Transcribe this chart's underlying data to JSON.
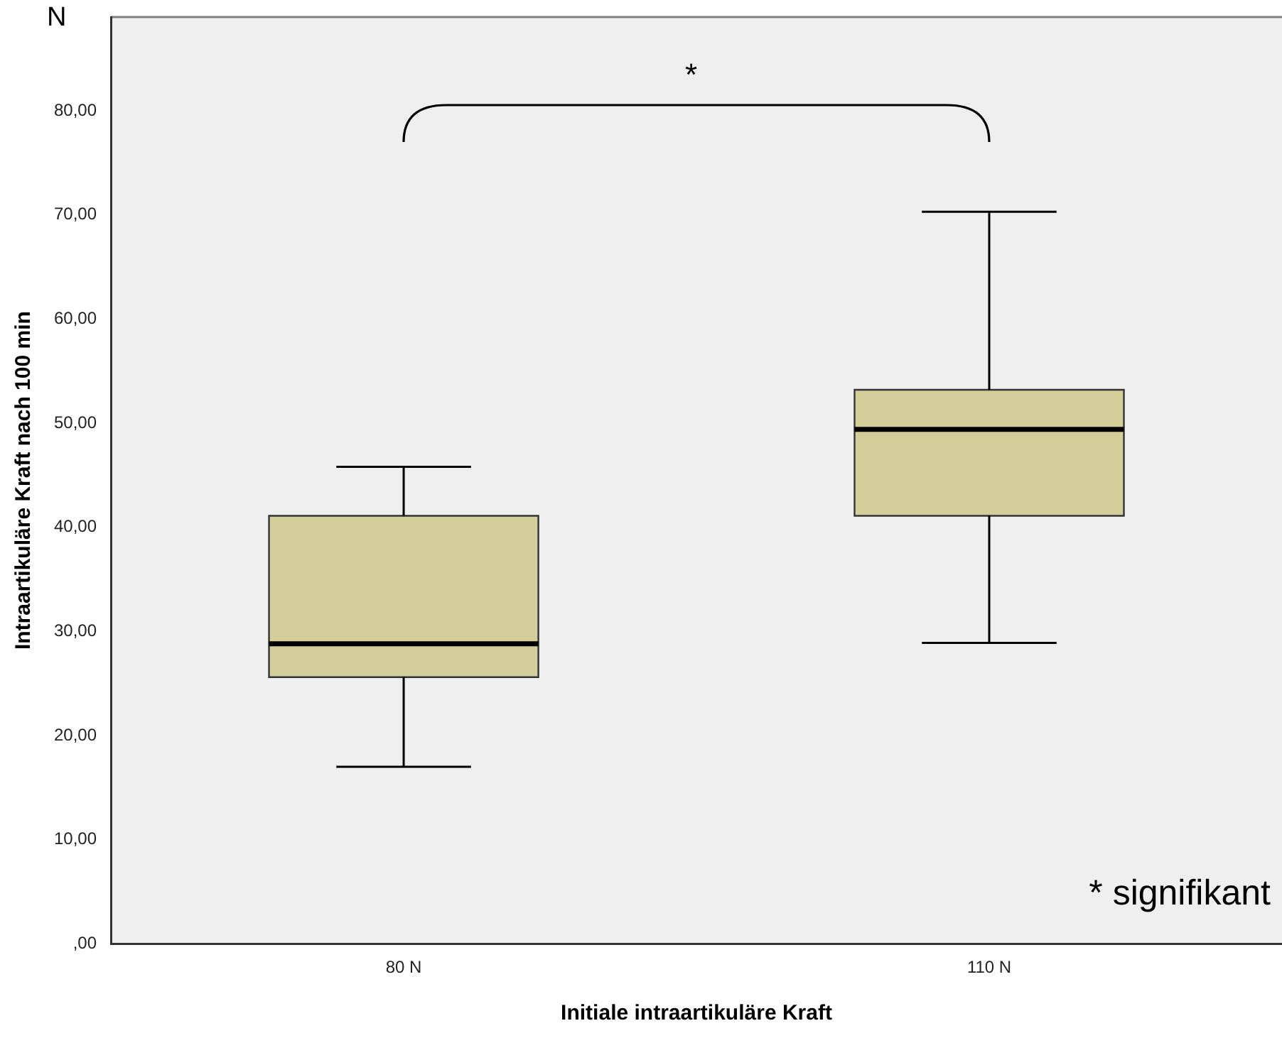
{
  "chart_data": {
    "type": "box",
    "xlabel": "Initiale intraartikuläre Kraft",
    "ylabel": "Intraartikuläre Kraft nach 100 min",
    "categories": [
      "80 N",
      "110 N"
    ],
    "boxes": [
      {
        "low": 17.0,
        "q1": 25.6,
        "median": 28.8,
        "q3": 41.1,
        "high": 45.8
      },
      {
        "low": 28.9,
        "q1": 41.1,
        "median": 49.4,
        "q3": 53.2,
        "high": 70.3
      }
    ],
    "color": "#d3ce99",
    "ylim": [
      0,
      89
    ],
    "yticks": [
      {
        "value": 0,
        "label": ",00"
      },
      {
        "value": 10,
        "label": "10,00"
      },
      {
        "value": 20,
        "label": "20,00"
      },
      {
        "value": 30,
        "label": "30,00"
      },
      {
        "value": 40,
        "label": "40,00"
      },
      {
        "value": 50,
        "label": "50,00"
      },
      {
        "value": 60,
        "label": "60,00"
      },
      {
        "value": 70,
        "label": "70,00"
      },
      {
        "value": 80,
        "label": "80,00"
      }
    ],
    "grid": false,
    "legend": false,
    "annotations": [
      "N",
      "*",
      "* signifikant"
    ]
  }
}
